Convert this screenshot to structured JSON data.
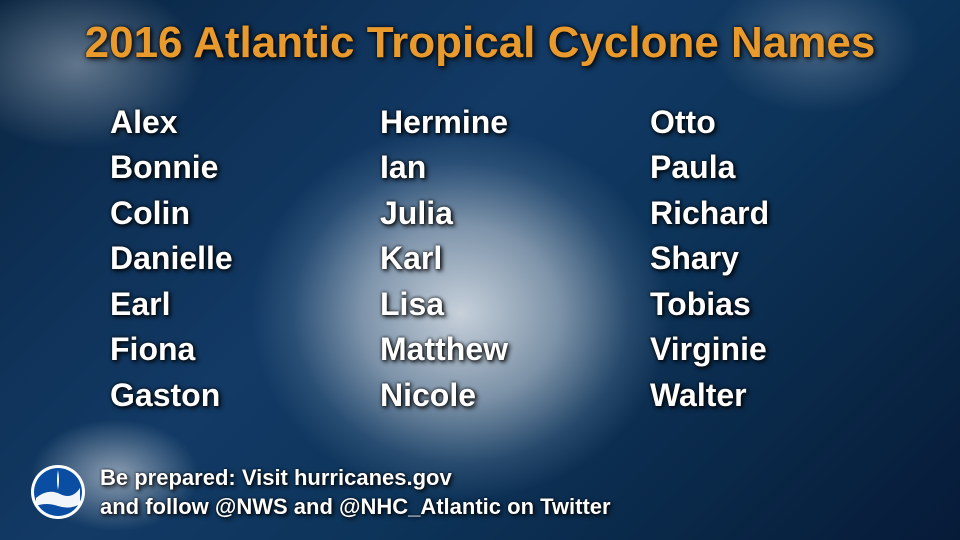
{
  "title": "2016 Atlantic Tropical Cyclone Names",
  "title_color": "#e89a2c",
  "text_color": "#ffffff",
  "columns": [
    [
      "Alex",
      "Bonnie",
      "Colin",
      "Danielle",
      "Earl",
      "Fiona",
      "Gaston"
    ],
    [
      "Hermine",
      "Ian",
      "Julia",
      "Karl",
      "Lisa",
      "Matthew",
      "Nicole"
    ],
    [
      "Otto",
      "Paula",
      "Richard",
      "Shary",
      "Tobias",
      "Virginie",
      "Walter"
    ]
  ],
  "footer_line1": "Be prepared: Visit hurricanes.gov",
  "footer_line2": "and follow @NWS and @NHC_Atlantic on Twitter",
  "logo": {
    "outer_color": "#ffffff",
    "fill_color": "#0a4ea3",
    "swoosh_color": "#ffffff"
  },
  "style": {
    "title_fontsize": 44,
    "name_fontsize": 32,
    "footer_fontsize": 22,
    "font_weight": "bold",
    "shadow": "2px 2px 5px rgba(0,0,0,0.9)"
  }
}
